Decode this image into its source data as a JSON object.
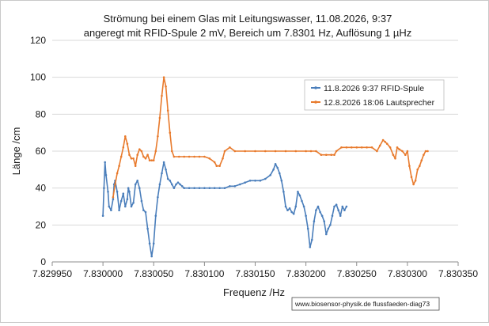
{
  "chart_data": {
    "type": "line",
    "title": "Strömung bei einem Glas mit  Leitungswasser, 11.08.2026, 9:37",
    "subtitle": "angeregt mit RFID-Spule 2 mV, Bereich  um 7.8301 Hz, Auflösung 1 µHz",
    "xlabel": "Frequenz /Hz",
    "ylabel": "Länge /cm",
    "xlim": [
      7.82995,
      7.83035
    ],
    "ylim": [
      0,
      120
    ],
    "xticks": [
      7.82995,
      7.83,
      7.83005,
      7.8301,
      7.83015,
      7.8302,
      7.83025,
      7.8303,
      7.83035
    ],
    "xtick_labels": [
      "7.829950",
      "7.830000",
      "7.830050",
      "7.830100",
      "7.830150",
      "7.830200",
      "7.830250",
      "7.830300",
      "7.830350"
    ],
    "yticks": [
      0,
      20,
      40,
      60,
      80,
      100,
      120
    ],
    "grid": "horizontal",
    "legend_position": "top-right",
    "footnote": "www.biosensor-physik.de  flussfaeden-diag73",
    "series": [
      {
        "name": "11.8.2026 9:37 RFID-Spule",
        "color": "#4a7ebb",
        "x": [
          7.83,
          7.830001,
          7.830002,
          7.830003,
          7.830005,
          7.830006,
          7.830008,
          7.83001,
          7.830011,
          7.830012,
          7.830014,
          7.830016,
          7.830018,
          7.83002,
          7.830022,
          7.830024,
          7.830025,
          7.830026,
          7.830028,
          7.83003,
          7.830032,
          7.830034,
          7.830036,
          7.830038,
          7.83004,
          7.830042,
          7.830044,
          7.830046,
          7.830048,
          7.83005,
          7.830052,
          7.830054,
          7.830056,
          7.830058,
          7.83006,
          7.830062,
          7.830064,
          7.830066,
          7.830068,
          7.83007,
          7.830072,
          7.830074,
          7.830076,
          7.830078,
          7.83008,
          7.830085,
          7.83009,
          7.830095,
          7.8301,
          7.830105,
          7.83011,
          7.830115,
          7.83012,
          7.830125,
          7.83013,
          7.830135,
          7.83014,
          7.830145,
          7.83015,
          7.830155,
          7.83016,
          7.830165,
          7.830168,
          7.83017,
          7.830172,
          7.830174,
          7.830176,
          7.830178,
          7.83018,
          7.830182,
          7.830184,
          7.830186,
          7.830188,
          7.83019,
          7.830192,
          7.830194,
          7.830196,
          7.830198,
          7.8302,
          7.830202,
          7.830204,
          7.830206,
          7.830208,
          7.83021,
          7.830212,
          7.830214,
          7.830216,
          7.830218,
          7.83022,
          7.830222,
          7.830224,
          7.830226,
          7.830228,
          7.83023,
          7.830232,
          7.830234,
          7.830236,
          7.830238,
          7.83024
        ],
        "y": [
          25,
          40,
          54,
          47,
          38,
          30,
          28,
          34,
          42,
          44,
          38,
          28,
          33,
          37,
          30,
          34,
          40,
          38,
          30,
          32,
          42,
          44,
          40,
          33,
          28,
          27,
          18,
          10,
          3,
          10,
          25,
          35,
          42,
          48,
          54,
          50,
          45,
          44,
          42,
          40,
          42,
          43,
          42,
          41,
          40,
          40,
          40,
          40,
          40,
          40,
          40,
          40,
          40,
          41,
          41,
          42,
          43,
          44,
          44,
          44,
          45,
          47,
          50,
          53,
          51,
          48,
          44,
          38,
          30,
          28,
          29,
          27,
          26,
          30,
          38,
          36,
          33,
          30,
          25,
          18,
          8,
          12,
          22,
          28,
          30,
          27,
          25,
          22,
          15,
          18,
          20,
          25,
          30,
          31,
          28,
          25,
          30,
          28,
          30
        ]
      },
      {
        "name": "12.8.2026 18:06 Lautsprecher",
        "color": "#e87a2c",
        "x": [
          7.83001,
          7.830012,
          7.830014,
          7.830016,
          7.830018,
          7.83002,
          7.830022,
          7.830024,
          7.830026,
          7.830028,
          7.83003,
          7.830032,
          7.830034,
          7.830036,
          7.830038,
          7.83004,
          7.830042,
          7.830044,
          7.830046,
          7.830048,
          7.83005,
          7.830052,
          7.830054,
          7.830056,
          7.830058,
          7.83006,
          7.830062,
          7.830064,
          7.830066,
          7.830068,
          7.83007,
          7.830075,
          7.83008,
          7.830085,
          7.83009,
          7.830095,
          7.8301,
          7.830105,
          7.83011,
          7.830112,
          7.830115,
          7.830118,
          7.83012,
          7.830125,
          7.83013,
          7.83014,
          7.83015,
          7.83016,
          7.83017,
          7.83018,
          7.83019,
          7.8302,
          7.830205,
          7.83021,
          7.830215,
          7.83022,
          7.830225,
          7.830228,
          7.83023,
          7.830235,
          7.83024,
          7.830245,
          7.83025,
          7.830255,
          7.83026,
          7.830265,
          7.83027,
          7.830273,
          7.830276,
          7.830278,
          7.83028,
          7.830283,
          7.830286,
          7.830288,
          7.83029,
          7.830292,
          7.830295,
          7.830298,
          7.8303,
          7.830302,
          7.830304,
          7.830306,
          7.830308,
          7.83031,
          7.830312,
          7.830314,
          7.830316,
          7.830318,
          7.83032
        ],
        "y": [
          35,
          42,
          48,
          52,
          57,
          62,
          68,
          64,
          58,
          56,
          56,
          52,
          58,
          61,
          60,
          57,
          56,
          58,
          55,
          55,
          55,
          60,
          68,
          78,
          90,
          100,
          95,
          82,
          70,
          60,
          57,
          57,
          57,
          57,
          57,
          57,
          57,
          56,
          54,
          52,
          52,
          56,
          60,
          62,
          60,
          60,
          60,
          60,
          60,
          60,
          60,
          60,
          60,
          60,
          58,
          58,
          58,
          58,
          60,
          62,
          62,
          62,
          62,
          62,
          62,
          62,
          60,
          63,
          66,
          65,
          64,
          62,
          58,
          56,
          62,
          61,
          60,
          58,
          60,
          52,
          46,
          42,
          44,
          50,
          52,
          55,
          58,
          60,
          60
        ]
      }
    ]
  }
}
